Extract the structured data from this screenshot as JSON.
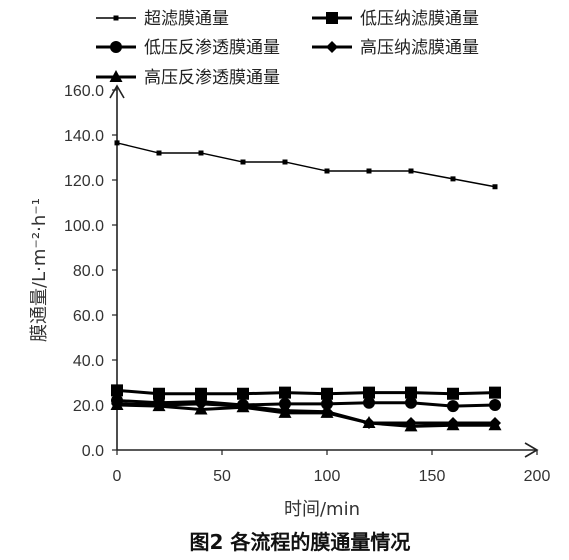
{
  "chart_data": {
    "type": "line",
    "caption": "图2  各流程的膜通量情况",
    "xlabel": "时间/min",
    "ylabel": "膜通量/L·m⁻²·h⁻¹",
    "xlim": [
      0,
      200
    ],
    "ylim": [
      0,
      160
    ],
    "x_ticks": [
      "0",
      "50",
      "100",
      "150",
      "200"
    ],
    "y_ticks": [
      "0.0",
      "20.0",
      "40.0",
      "60.0",
      "80.0",
      "100.0",
      "120.0",
      "140.0",
      "160.0"
    ],
    "grid": false,
    "legend_position": "top",
    "series": [
      {
        "name": "超滤膜通量",
        "marker": "small-square",
        "x": [
          0,
          20,
          40,
          60,
          80,
          100,
          120,
          140,
          160,
          180
        ],
        "y": [
          136.5,
          132.0,
          132.0,
          128.0,
          128.0,
          124.0,
          124.0,
          124.0,
          120.5,
          117.0
        ]
      },
      {
        "name": "低压纳滤膜通量",
        "marker": "square",
        "x": [
          0,
          20,
          40,
          60,
          80,
          100,
          120,
          140,
          160,
          180
        ],
        "y": [
          26.5,
          25.0,
          25.0,
          25.0,
          25.5,
          25.0,
          25.5,
          25.5,
          25.0,
          25.5
        ]
      },
      {
        "name": "低压反渗透膜通量",
        "marker": "circle",
        "x": [
          0,
          20,
          40,
          60,
          80,
          100,
          120,
          140,
          160,
          180
        ],
        "y": [
          22.0,
          21.0,
          21.5,
          20.0,
          20.5,
          20.5,
          21.0,
          21.0,
          19.5,
          20.0
        ]
      },
      {
        "name": "高压纳滤膜通量",
        "marker": "diamond",
        "x": [
          0,
          20,
          40,
          60,
          80,
          100,
          120,
          140,
          160,
          180
        ],
        "y": [
          20.5,
          20.0,
          20.5,
          19.5,
          17.5,
          17.0,
          12.0,
          12.0,
          12.0,
          12.0
        ]
      },
      {
        "name": "高压反渗透膜通量",
        "marker": "triangle",
        "x": [
          0,
          20,
          40,
          60,
          80,
          100,
          120,
          140,
          160,
          180
        ],
        "y": [
          20.0,
          19.5,
          18.0,
          19.0,
          16.5,
          16.5,
          12.0,
          10.5,
          11.0,
          11.0
        ]
      }
    ]
  }
}
